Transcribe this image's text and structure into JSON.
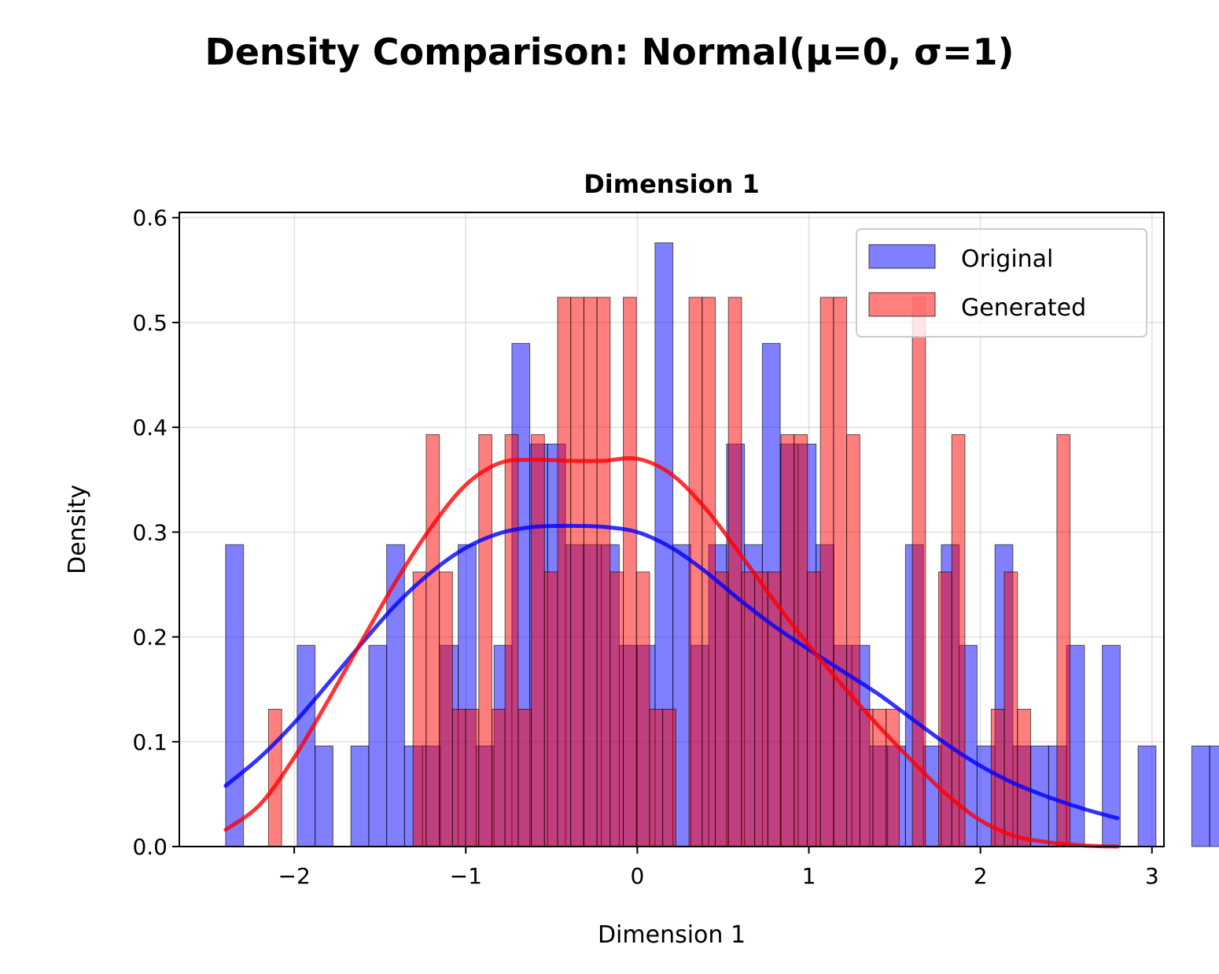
{
  "figure": {
    "suptitle": "Density Comparison: Normal(μ=0, σ=1)"
  },
  "chart_data": {
    "type": "histogram",
    "title": "Dimension 1",
    "xlabel": "Dimension 1",
    "ylabel": "Density",
    "xlim": [
      -2.67,
      3.07
    ],
    "ylim": [
      0,
      0.605
    ],
    "xticks": [
      -2,
      -1,
      0,
      1,
      2,
      3
    ],
    "xtick_labels": [
      "−2",
      "−1",
      "0",
      "1",
      "2",
      "3"
    ],
    "yticks": [
      0.0,
      0.1,
      0.2,
      0.3,
      0.4,
      0.5,
      0.6
    ],
    "ytick_labels": [
      "0.0",
      "0.1",
      "0.2",
      "0.3",
      "0.4",
      "0.5",
      "0.6"
    ],
    "grid": true,
    "legend_position": "top-right",
    "series": [
      {
        "name": "Original",
        "color": "#0000ff",
        "bin_start": -2.4,
        "bin_width": 0.1043,
        "densities": [
          0.288,
          0,
          0,
          0,
          0.192,
          0.096,
          0,
          0.096,
          0.192,
          0.288,
          0.096,
          0.096,
          0.192,
          0.288,
          0.096,
          0.192,
          0.48,
          0.384,
          0.384,
          0.288,
          0.288,
          0.288,
          0.192,
          0.192,
          0.576,
          0.288,
          0.192,
          0.288,
          0.384,
          0.288,
          0.48,
          0.384,
          0.384,
          0.288,
          0.192,
          0.192,
          0.096,
          0.096,
          0.288,
          0.096,
          0.288,
          0.192,
          0.096,
          0.288,
          0.096,
          0.096,
          0.096,
          0.192,
          0,
          0.192,
          0,
          0.096,
          0,
          0,
          0.096,
          0.096
        ]
      },
      {
        "name": "Generated",
        "color": "#ff0000",
        "bin_start": -2.15,
        "bin_width": 0.0766,
        "densities": [
          0.131,
          0,
          0,
          0,
          0,
          0,
          0,
          0,
          0,
          0,
          0,
          0.262,
          0.393,
          0.262,
          0.131,
          0.131,
          0.393,
          0.131,
          0.393,
          0.131,
          0.393,
          0.262,
          0.524,
          0.524,
          0.524,
          0.524,
          0.262,
          0.524,
          0.262,
          0.131,
          0.131,
          0,
          0.524,
          0.524,
          0.262,
          0.524,
          0.262,
          0.262,
          0.262,
          0.393,
          0.393,
          0.262,
          0.524,
          0.524,
          0.393,
          0.131,
          0.131,
          0.131,
          0,
          0.524,
          0,
          0.262,
          0.393,
          0,
          0,
          0.131,
          0.262,
          0.131,
          0,
          0,
          0.393
        ]
      }
    ],
    "kde": [
      {
        "name": "Original",
        "color": "#0000ff",
        "points": [
          [
            -2.4,
            0.058
          ],
          [
            -2.2,
            0.085
          ],
          [
            -2.0,
            0.118
          ],
          [
            -1.8,
            0.156
          ],
          [
            -1.6,
            0.195
          ],
          [
            -1.4,
            0.232
          ],
          [
            -1.2,
            0.262
          ],
          [
            -1.0,
            0.285
          ],
          [
            -0.8,
            0.299
          ],
          [
            -0.6,
            0.305
          ],
          [
            -0.4,
            0.306
          ],
          [
            -0.2,
            0.305
          ],
          [
            0.0,
            0.3
          ],
          [
            0.2,
            0.285
          ],
          [
            0.4,
            0.262
          ],
          [
            0.6,
            0.235
          ],
          [
            0.8,
            0.21
          ],
          [
            1.0,
            0.188
          ],
          [
            1.2,
            0.167
          ],
          [
            1.4,
            0.146
          ],
          [
            1.6,
            0.122
          ],
          [
            1.8,
            0.098
          ],
          [
            2.0,
            0.077
          ],
          [
            2.2,
            0.06
          ],
          [
            2.4,
            0.047
          ],
          [
            2.6,
            0.036
          ],
          [
            2.8,
            0.027
          ]
        ]
      },
      {
        "name": "Generated",
        "color": "#ff0000",
        "points": [
          [
            -2.4,
            0.016
          ],
          [
            -2.2,
            0.04
          ],
          [
            -2.0,
            0.085
          ],
          [
            -1.8,
            0.14
          ],
          [
            -1.6,
            0.198
          ],
          [
            -1.4,
            0.255
          ],
          [
            -1.2,
            0.305
          ],
          [
            -1.0,
            0.345
          ],
          [
            -0.8,
            0.366
          ],
          [
            -0.6,
            0.369
          ],
          [
            -0.4,
            0.368
          ],
          [
            -0.2,
            0.368
          ],
          [
            0.0,
            0.37
          ],
          [
            0.2,
            0.355
          ],
          [
            0.4,
            0.322
          ],
          [
            0.6,
            0.279
          ],
          [
            0.8,
            0.234
          ],
          [
            1.0,
            0.192
          ],
          [
            1.2,
            0.153
          ],
          [
            1.4,
            0.116
          ],
          [
            1.6,
            0.082
          ],
          [
            1.8,
            0.05
          ],
          [
            2.0,
            0.025
          ],
          [
            2.2,
            0.01
          ],
          [
            2.4,
            0.004
          ],
          [
            2.6,
            0.001
          ],
          [
            2.8,
            0.0
          ]
        ]
      }
    ]
  }
}
